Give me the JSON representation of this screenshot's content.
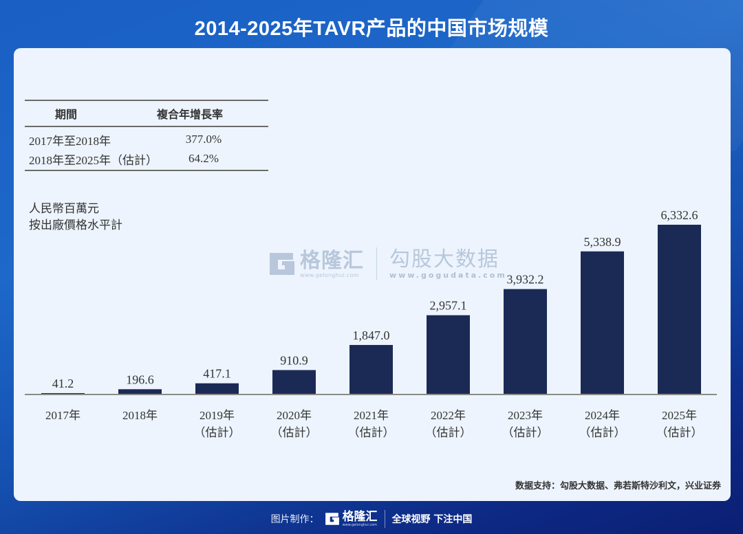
{
  "title": "2014-2025年TAVR产品的中国市场规模",
  "cagr_table": {
    "headers": [
      "期間",
      "複合年增長率"
    ],
    "rows": [
      {
        "period": "2017年至2018年",
        "rate": "377.0%"
      },
      {
        "period": "2018年至2025年（估計）",
        "rate": "64.2%"
      }
    ]
  },
  "unit_label": [
    "人民幣百萬元",
    "按出廠價格水平計"
  ],
  "watermark": {
    "brand_cn": "格隆汇",
    "brand_url": "www.gelonghui.com",
    "partner_cn": "勾股大数据",
    "partner_url": "www.gogudata.com"
  },
  "chart_data": {
    "type": "bar",
    "title": "2014-2025年TAVR产品的中国市场规模",
    "xlabel": "",
    "ylabel": "人民幣百萬元（按出廠價格水平計）",
    "categories": [
      "2017年",
      "2018年",
      "2019年（估計）",
      "2020年（估計）",
      "2021年（估計）",
      "2022年（估計）",
      "2023年（估計）",
      "2024年（估計）",
      "2025年（估計）"
    ],
    "category_lines": [
      [
        "2017年"
      ],
      [
        "2018年"
      ],
      [
        "2019年",
        "（估計）"
      ],
      [
        "2020年",
        "（估計）"
      ],
      [
        "2021年",
        "（估計）"
      ],
      [
        "2022年",
        "（估計）"
      ],
      [
        "2023年",
        "（估計）"
      ],
      [
        "2024年",
        "（估計）"
      ],
      [
        "2025年",
        "（估計）"
      ]
    ],
    "values": [
      41.2,
      196.6,
      417.1,
      910.9,
      1847.0,
      2957.1,
      3932.2,
      5338.9,
      6332.6
    ],
    "value_labels": [
      "41.2",
      "196.6",
      "417.1",
      "910.9",
      "1,847.0",
      "2,957.1",
      "3,932.2",
      "5,338.9",
      "6,332.6"
    ],
    "ylim": [
      0,
      6332.6
    ],
    "grid": false,
    "legend": "none",
    "bar_color": "#1b2a55",
    "axis_color": "#8a8a8a"
  },
  "source": "数据支持：勾股大数据、弗若斯特沙利文，兴业证券",
  "footer": {
    "made_by": "图片制作：",
    "brand_cn": "格隆汇",
    "brand_url": "www.gelonghui.com",
    "slogan": "全球视野 下注中国"
  },
  "colors": {
    "background_top": "#1d68c9",
    "background_bottom": "#0b1f73",
    "panel": "#edf4fd",
    "bar": "#1b2a55",
    "text": "#333333"
  }
}
